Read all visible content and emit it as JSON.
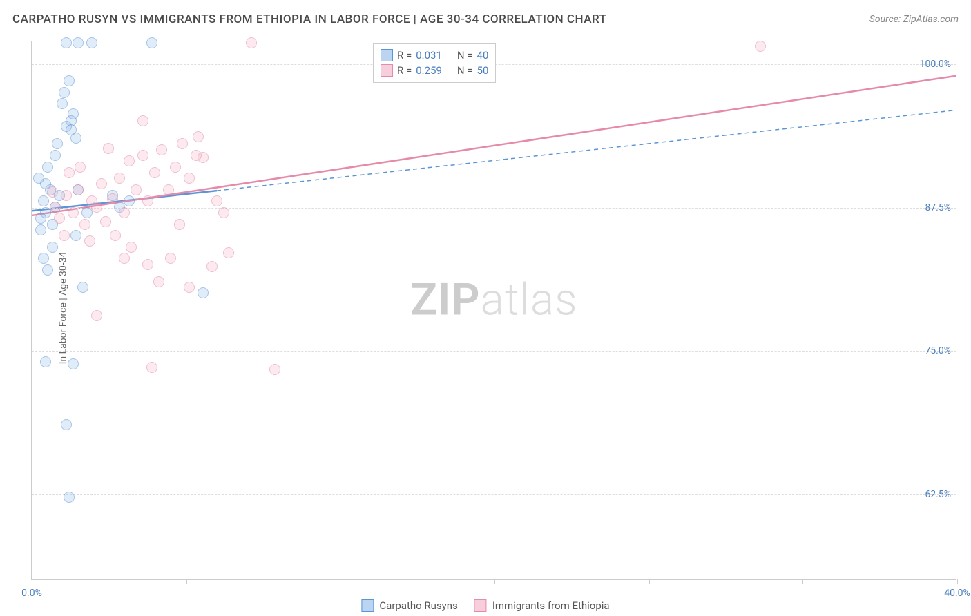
{
  "header": {
    "title": "CARPATHO RUSYN VS IMMIGRANTS FROM ETHIOPIA IN LABOR FORCE | AGE 30-34 CORRELATION CHART",
    "source": "Source: ZipAtlas.com"
  },
  "watermark": {
    "pre": "ZIP",
    "post": "atlas"
  },
  "ylabel": "In Labor Force | Age 30-34",
  "chart": {
    "type": "scatter",
    "x_range": [
      0,
      40
    ],
    "y_range": [
      55,
      102
    ],
    "y_ticks": [
      62.5,
      75.0,
      87.5,
      100.0
    ],
    "y_tick_labels": [
      "62.5%",
      "75.0%",
      "87.5%",
      "100.0%"
    ],
    "x_ticks": [
      0,
      20,
      40
    ],
    "x_tick_labels": [
      "0.0%",
      "",
      "40.0%"
    ],
    "x_minor_ticks": [
      0,
      6.7,
      13.3,
      20,
      26.7,
      33.3,
      40
    ],
    "grid_color": "#dddddd",
    "background_color": "#ffffff",
    "colors": {
      "blue": "#5a95d6",
      "pink": "#e58aa8",
      "axis_text": "#4a7ebb"
    },
    "series": [
      {
        "name": "Carpatho Rusyns",
        "color": "blue",
        "trend": {
          "x0": 0,
          "y0": 87.2,
          "x1": 40,
          "y1": 96.0,
          "solid_until_x": 8,
          "dash_after": true
        },
        "R": "0.031",
        "N": "40",
        "points": [
          [
            0.5,
            88
          ],
          [
            0.6,
            87
          ],
          [
            0.8,
            89
          ],
          [
            0.4,
            86.5
          ],
          [
            1.0,
            87.5
          ],
          [
            0.3,
            90
          ],
          [
            1.2,
            88.5
          ],
          [
            0.9,
            86
          ],
          [
            1.5,
            101.8
          ],
          [
            2.0,
            101.8
          ],
          [
            2.6,
            101.8
          ],
          [
            5.2,
            101.8
          ],
          [
            1.4,
            97.5
          ],
          [
            1.6,
            98.5
          ],
          [
            1.7,
            95
          ],
          [
            1.8,
            95.6
          ],
          [
            1.5,
            94.5
          ],
          [
            1.7,
            94.2
          ],
          [
            1.9,
            93.5
          ],
          [
            2.2,
            80.5
          ],
          [
            1.8,
            73.8
          ],
          [
            0.6,
            74
          ],
          [
            1.5,
            68.5
          ],
          [
            1.6,
            62.2
          ],
          [
            2.0,
            89
          ],
          [
            2.4,
            87
          ],
          [
            1.9,
            85
          ],
          [
            0.9,
            84
          ],
          [
            0.5,
            83
          ],
          [
            0.7,
            91
          ],
          [
            3.5,
            88.5
          ],
          [
            3.8,
            87.5
          ],
          [
            4.2,
            88
          ],
          [
            7.4,
            80
          ],
          [
            1.0,
            92
          ],
          [
            0.4,
            85.5
          ],
          [
            0.7,
            82
          ],
          [
            1.3,
            96.5
          ],
          [
            1.1,
            93
          ],
          [
            0.6,
            89.5
          ]
        ]
      },
      {
        "name": "Immigants from Ethiopia",
        "display_name": "Immigrants from Ethiopia",
        "color": "pink",
        "trend": {
          "x0": 0,
          "y0": 86.8,
          "x1": 40,
          "y1": 99.0,
          "solid_until_x": 40,
          "dash_after": false
        },
        "R": "0.259",
        "N": "50",
        "points": [
          [
            1.0,
            87.5
          ],
          [
            1.2,
            86.5
          ],
          [
            1.5,
            88.5
          ],
          [
            1.8,
            87
          ],
          [
            2.0,
            89
          ],
          [
            2.3,
            86
          ],
          [
            2.6,
            88
          ],
          [
            2.8,
            87.5
          ],
          [
            3.0,
            89.5
          ],
          [
            3.2,
            86.2
          ],
          [
            3.5,
            88.2
          ],
          [
            3.8,
            90
          ],
          [
            4.0,
            87
          ],
          [
            4.2,
            91.5
          ],
          [
            4.5,
            89
          ],
          [
            4.8,
            92
          ],
          [
            5.0,
            88
          ],
          [
            5.3,
            90.5
          ],
          [
            5.6,
            92.5
          ],
          [
            5.9,
            89
          ],
          [
            6.2,
            91
          ],
          [
            6.5,
            93
          ],
          [
            6.8,
            90
          ],
          [
            7.1,
            92
          ],
          [
            7.4,
            91.8
          ],
          [
            5.0,
            82.5
          ],
          [
            5.5,
            81
          ],
          [
            6.0,
            83
          ],
          [
            6.8,
            80.5
          ],
          [
            7.8,
            82.3
          ],
          [
            8.5,
            83.5
          ],
          [
            9.5,
            101.8
          ],
          [
            31.5,
            101.5
          ],
          [
            4.8,
            95
          ],
          [
            7.2,
            93.6
          ],
          [
            8.0,
            88
          ],
          [
            8.3,
            87
          ],
          [
            3.6,
            85
          ],
          [
            4.3,
            84
          ],
          [
            2.5,
            84.5
          ],
          [
            5.2,
            73.5
          ],
          [
            10.5,
            73.3
          ],
          [
            2.8,
            78
          ],
          [
            1.6,
            90.5
          ],
          [
            2.1,
            91
          ],
          [
            1.4,
            85
          ],
          [
            0.9,
            88.8
          ],
          [
            6.4,
            86
          ],
          [
            4.0,
            83
          ],
          [
            3.3,
            92.6
          ]
        ]
      }
    ]
  },
  "stats_box": {
    "rows": [
      {
        "color": "blue",
        "r_label": "R =",
        "r_val": "0.031",
        "n_label": "N =",
        "n_val": "40"
      },
      {
        "color": "pink",
        "r_label": "R =",
        "r_val": "0.259",
        "n_label": "N =",
        "n_val": "50"
      }
    ]
  },
  "legend": {
    "items": [
      {
        "color": "blue",
        "label": "Carpatho Rusyns"
      },
      {
        "color": "pink",
        "label": "Immigrants from Ethiopia"
      }
    ]
  }
}
